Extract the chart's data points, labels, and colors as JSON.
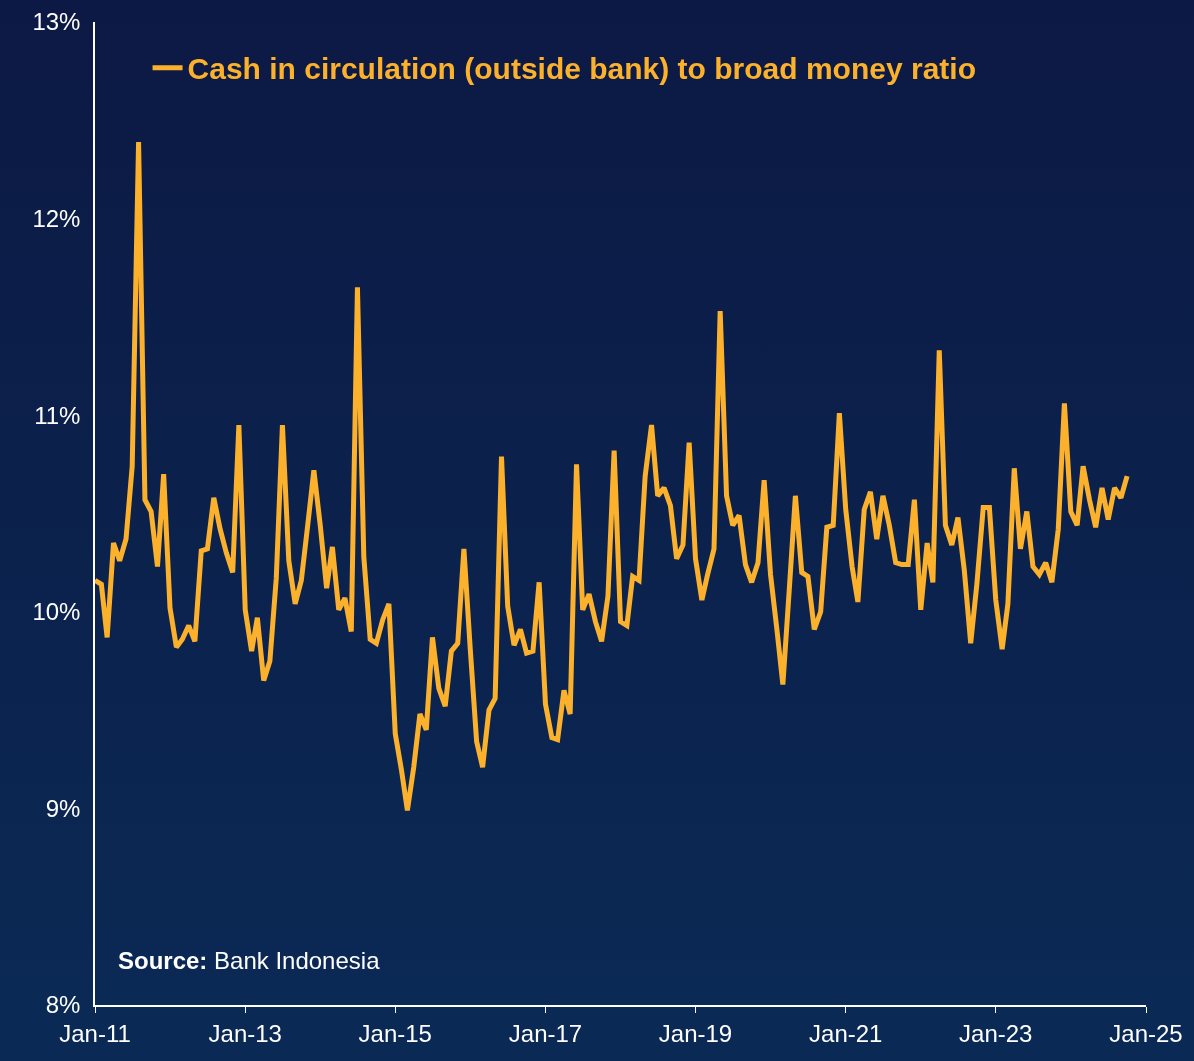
{
  "chart_data": {
    "type": "line",
    "annotations": [
      "Source: Bank Indonesia"
    ],
    "x": [
      "2011-01",
      "2011-02",
      "2011-03",
      "2011-04",
      "2011-05",
      "2011-06",
      "2011-07",
      "2011-08",
      "2011-09",
      "2011-10",
      "2011-11",
      "2011-12",
      "2012-01",
      "2012-02",
      "2012-03",
      "2012-04",
      "2012-05",
      "2012-06",
      "2012-07",
      "2012-08",
      "2012-09",
      "2012-10",
      "2012-11",
      "2012-12",
      "2013-01",
      "2013-02",
      "2013-03",
      "2013-04",
      "2013-05",
      "2013-06",
      "2013-07",
      "2013-08",
      "2013-09",
      "2013-10",
      "2013-11",
      "2013-12",
      "2014-01",
      "2014-02",
      "2014-03",
      "2014-04",
      "2014-05",
      "2014-06",
      "2014-07",
      "2014-08",
      "2014-09",
      "2014-10",
      "2014-11",
      "2014-12",
      "2015-01",
      "2015-02",
      "2015-03",
      "2015-04",
      "2015-05",
      "2015-06",
      "2015-07",
      "2015-08",
      "2015-09",
      "2015-10",
      "2015-11",
      "2015-12",
      "2016-01",
      "2016-02",
      "2016-03",
      "2016-04",
      "2016-05",
      "2016-06",
      "2016-07",
      "2016-08",
      "2016-09",
      "2016-10",
      "2016-11",
      "2016-12",
      "2017-01",
      "2017-02",
      "2017-03",
      "2017-04",
      "2017-05",
      "2017-06",
      "2017-07",
      "2017-08",
      "2017-09",
      "2017-10",
      "2017-11",
      "2017-12",
      "2018-01",
      "2018-02",
      "2018-03",
      "2018-04",
      "2018-05",
      "2018-06",
      "2018-07",
      "2018-08",
      "2018-09",
      "2018-10",
      "2018-11",
      "2018-12",
      "2019-01",
      "2019-02",
      "2019-03",
      "2019-04",
      "2019-05",
      "2019-06",
      "2019-07",
      "2019-08",
      "2019-09",
      "2019-10",
      "2019-11",
      "2019-12",
      "2020-01",
      "2020-02",
      "2020-03",
      "2020-04",
      "2020-05",
      "2020-06",
      "2020-07",
      "2020-08",
      "2020-09",
      "2020-10",
      "2020-11",
      "2020-12",
      "2021-01",
      "2021-02",
      "2021-03",
      "2021-04",
      "2021-05",
      "2021-06",
      "2021-07",
      "2021-08",
      "2021-09",
      "2021-10",
      "2021-11",
      "2021-12",
      "2022-01",
      "2022-02",
      "2022-03",
      "2022-04",
      "2022-05",
      "2022-06",
      "2022-07",
      "2022-08",
      "2022-09",
      "2022-10",
      "2022-11",
      "2022-12",
      "2023-01",
      "2023-02",
      "2023-03",
      "2023-04",
      "2023-05",
      "2023-06",
      "2023-07",
      "2023-08",
      "2023-09",
      "2023-10",
      "2023-11",
      "2023-12",
      "2024-01",
      "2024-02",
      "2024-03",
      "2024-04",
      "2024-05",
      "2024-06",
      "2024-07",
      "2024-08",
      "2024-09",
      "2024-10"
    ],
    "series": [
      {
        "name": "Cash in circulation (outside bank) to broad money ratio",
        "color": "#fbb12c",
        "values": [
          10.16,
          10.14,
          9.87,
          10.35,
          10.26,
          10.37,
          10.74,
          12.39,
          10.57,
          10.51,
          10.23,
          10.7,
          10.02,
          9.82,
          9.86,
          9.93,
          9.85,
          10.31,
          10.32,
          10.58,
          10.42,
          10.3,
          10.2,
          10.95,
          10.01,
          9.8,
          9.97,
          9.65,
          9.75,
          10.17,
          10.95,
          10.26,
          10.04,
          10.16,
          10.44,
          10.72,
          10.44,
          10.12,
          10.33,
          10.01,
          10.07,
          9.9,
          11.65,
          10.28,
          9.86,
          9.84,
          9.96,
          10.04,
          9.38,
          9.19,
          8.99,
          9.21,
          9.48,
          9.4,
          9.87,
          9.61,
          9.52,
          9.8,
          9.84,
          10.32,
          9.81,
          9.34,
          9.21,
          9.5,
          9.56,
          10.79,
          10.03,
          9.83,
          9.91,
          9.79,
          9.8,
          10.15,
          9.53,
          9.36,
          9.35,
          9.6,
          9.48,
          10.75,
          10.01,
          10.09,
          9.95,
          9.85,
          10.08,
          10.82,
          9.95,
          9.93,
          10.18,
          10.16,
          10.69,
          10.95,
          10.59,
          10.63,
          10.54,
          10.27,
          10.34,
          10.86,
          10.27,
          10.06,
          10.19,
          10.32,
          11.53,
          10.59,
          10.44,
          10.49,
          10.24,
          10.15,
          10.25,
          10.67,
          10.19,
          9.91,
          9.63,
          10.11,
          10.59,
          10.2,
          10.18,
          9.91,
          10.0,
          10.43,
          10.44,
          11.01,
          10.52,
          10.23,
          10.05,
          10.52,
          10.61,
          10.37,
          10.59,
          10.44,
          10.25,
          10.24,
          10.24,
          10.57,
          10.01,
          10.35,
          10.15,
          11.33,
          10.44,
          10.34,
          10.48,
          10.21,
          9.84,
          10.14,
          10.53,
          10.53,
          10.06,
          9.81,
          10.04,
          10.73,
          10.32,
          10.51,
          10.23,
          10.19,
          10.25,
          10.15,
          10.42,
          11.06,
          10.51,
          10.44,
          10.74,
          10.57,
          10.43,
          10.63,
          10.47,
          10.63,
          10.58,
          10.69
        ]
      }
    ],
    "xlim": [
      "2011-01",
      "2025-01"
    ],
    "xticks": [
      {
        "value": "2011-01",
        "label": "Jan-11"
      },
      {
        "value": "2013-01",
        "label": "Jan-13"
      },
      {
        "value": "2015-01",
        "label": "Jan-15"
      },
      {
        "value": "2017-01",
        "label": "Jan-17"
      },
      {
        "value": "2019-01",
        "label": "Jan-19"
      },
      {
        "value": "2021-01",
        "label": "Jan-21"
      },
      {
        "value": "2023-01",
        "label": "Jan-23"
      },
      {
        "value": "2025-01",
        "label": "Jan-25"
      }
    ],
    "ylim": [
      8,
      13
    ],
    "yticks": [
      {
        "value": 8,
        "label": "8%"
      },
      {
        "value": 9,
        "label": "9%"
      },
      {
        "value": 10,
        "label": "10%"
      },
      {
        "value": 11,
        "label": "11%"
      },
      {
        "value": 12,
        "label": "12%"
      },
      {
        "value": 13,
        "label": "13%"
      }
    ],
    "grid": false,
    "legend": "top left",
    "marker": "none",
    "line_style": "solid"
  }
}
